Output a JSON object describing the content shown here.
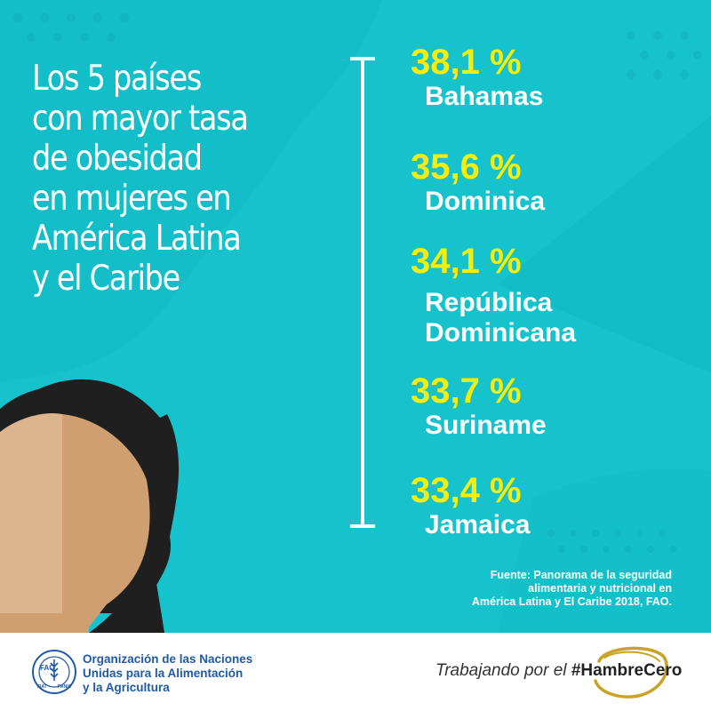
{
  "colors": {
    "background": "#16c3cd",
    "percent": "#f5ee0a",
    "text": "#ffffff",
    "fao_blue": "#1f5aa6",
    "gold": "#c9a227"
  },
  "title_lines": [
    "Los 5 países",
    "con mayor tasa",
    "de obesidad",
    "en mujeres en",
    "América Latina",
    "y el Caribe"
  ],
  "ranking": [
    {
      "percent": "38,1 %",
      "country": [
        "Bahamas"
      ]
    },
    {
      "percent": "35,6 %",
      "country": [
        "Dominica"
      ]
    },
    {
      "percent": "34,1 %",
      "country": [
        "República",
        "Dominicana"
      ]
    },
    {
      "percent": "33,7 %",
      "country": [
        "Suriname"
      ]
    },
    {
      "percent": "33,4 %",
      "country": [
        "Jamaica"
      ]
    }
  ],
  "source_lines": [
    "Fuente: Panorama de la seguridad",
    "alimentaria y nutricional en",
    "América Latina y El Caribe 2018, FAO."
  ],
  "footer": {
    "org_lines": [
      "Organización de las Naciones",
      "Unidas para la Alimentación",
      "y la Agricultura"
    ],
    "logo_letters": {
      "top": "FAO",
      "ring_left": "FIAT",
      "ring_right": "PANIS"
    },
    "slogan": "Trabajando por el",
    "hashtag": "#HambreCero"
  },
  "icons": {
    "logo": "fao-emblem-icon",
    "illustration": "woman-face-illustration",
    "hashtag_ring": "hashtag-ring-icon"
  }
}
